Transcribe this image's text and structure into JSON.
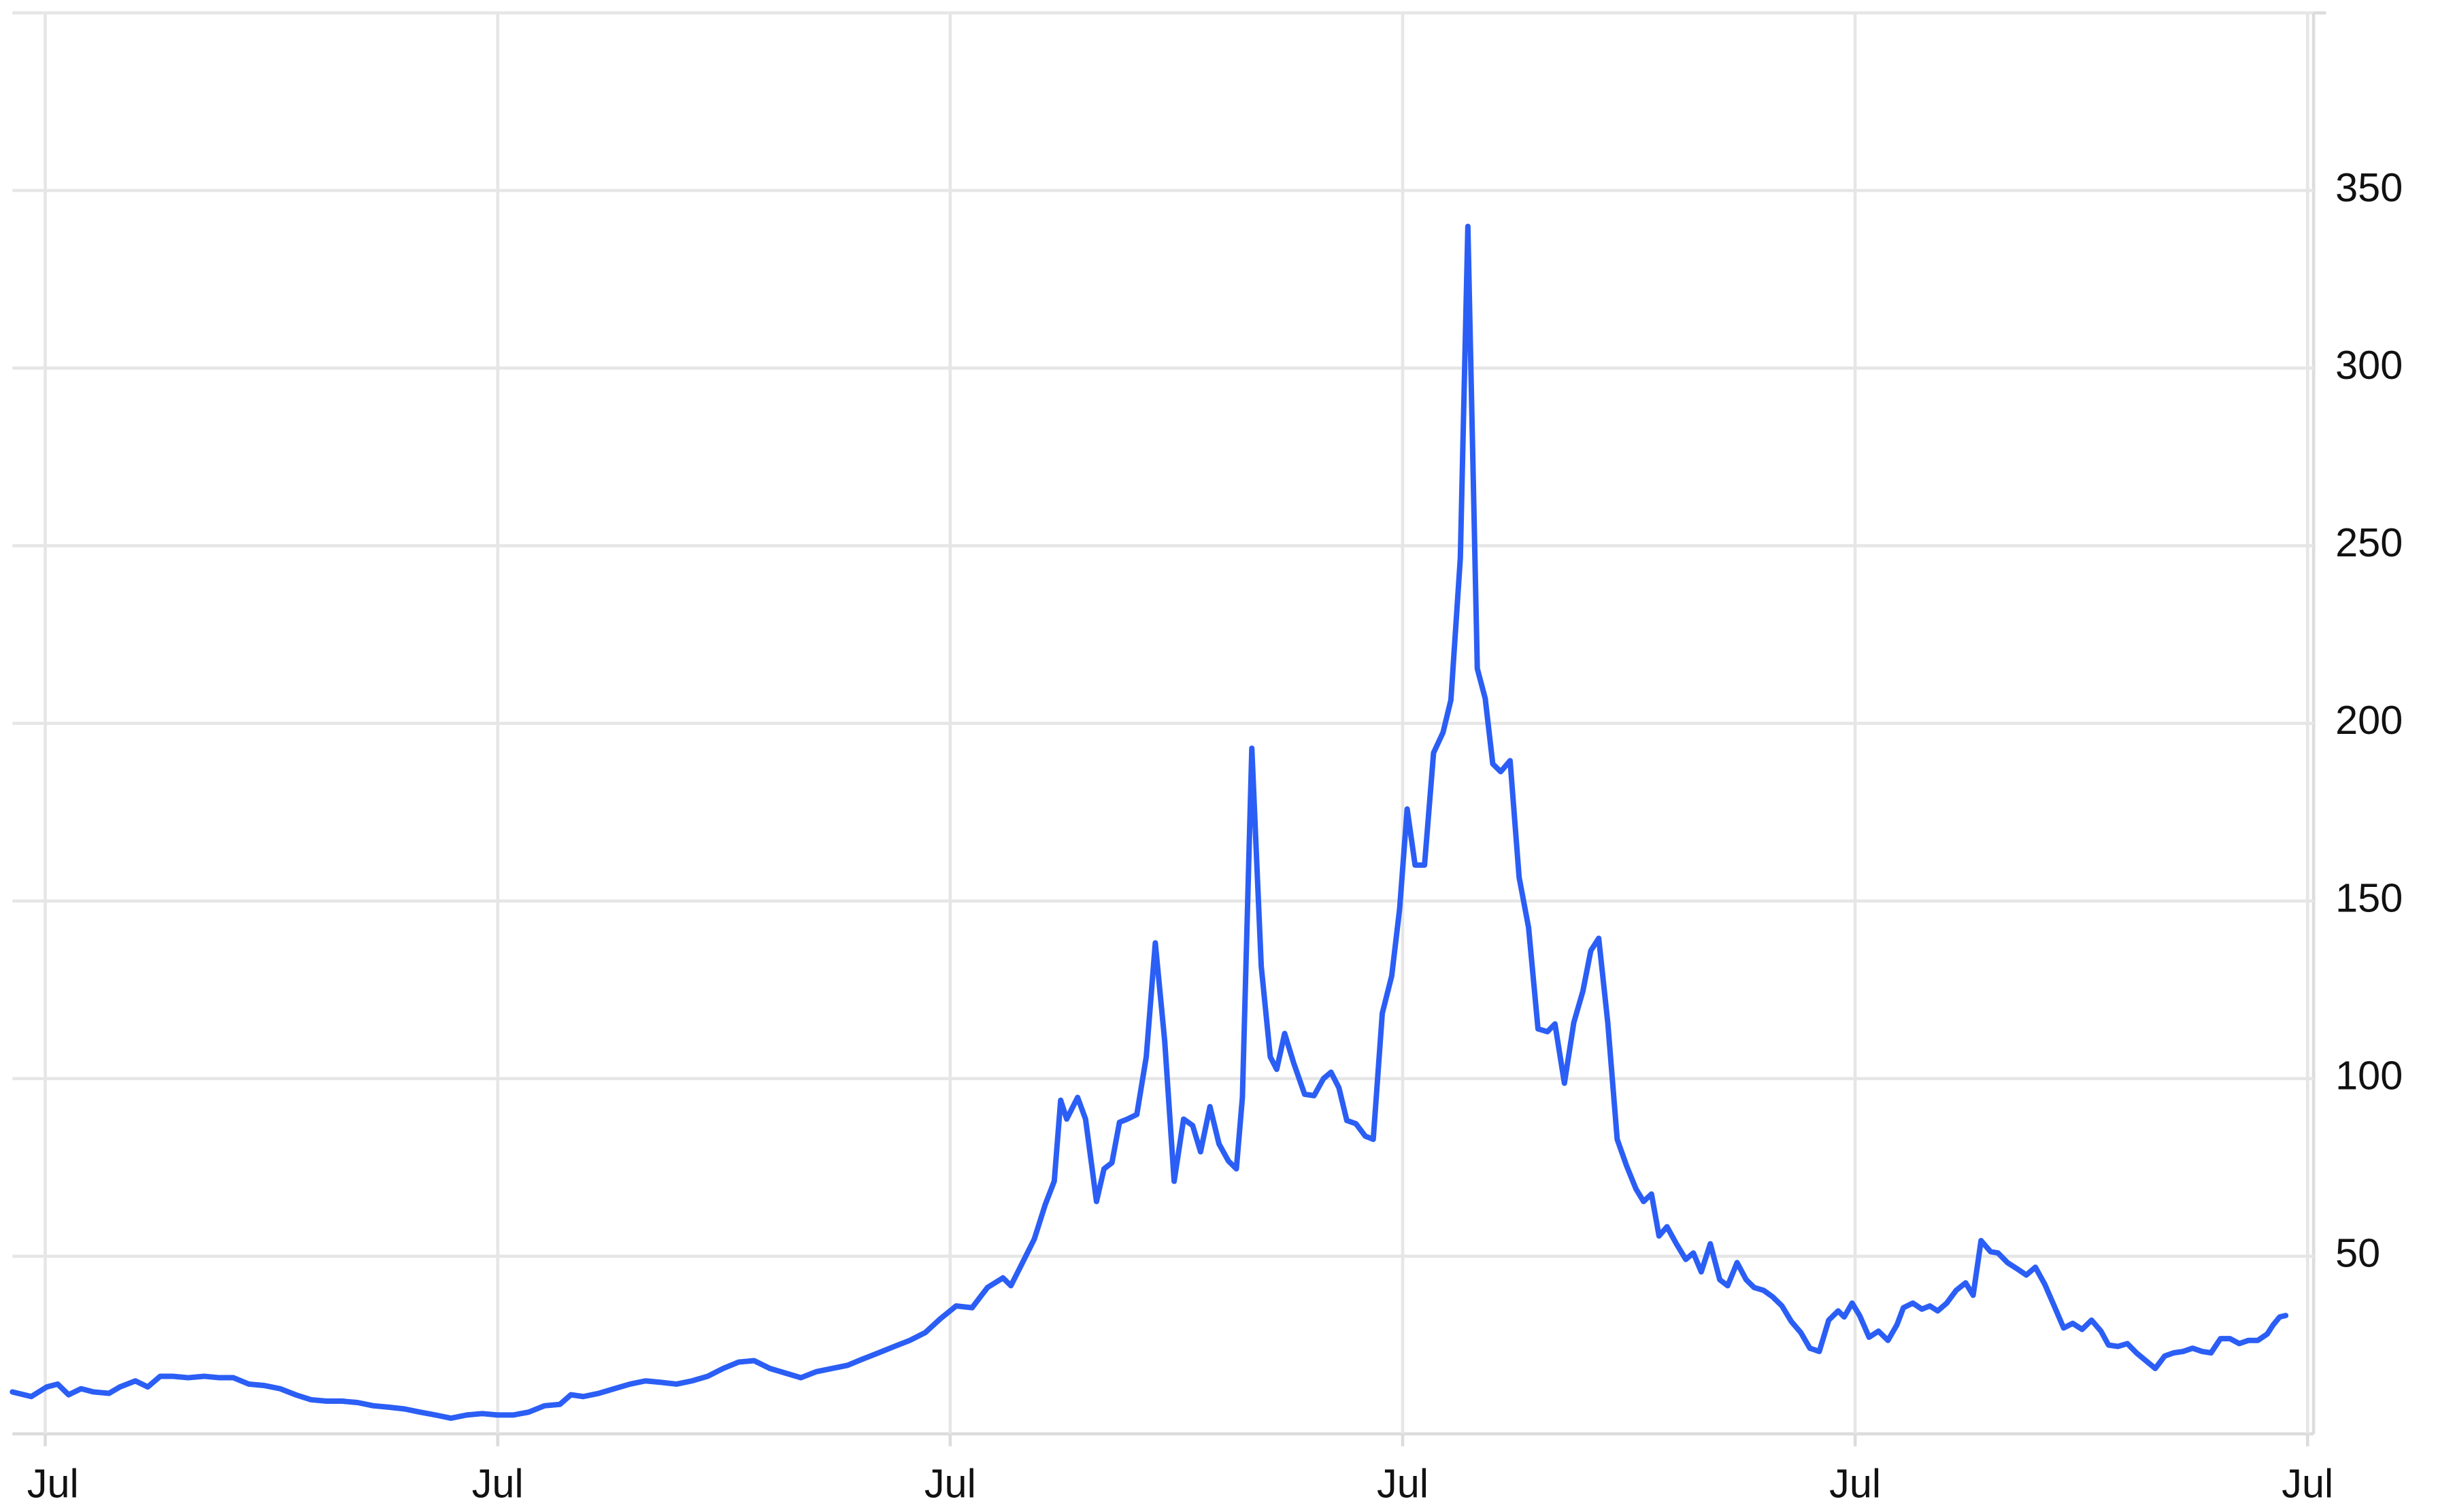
{
  "chart_data": {
    "type": "line",
    "color": "#2b5ef5",
    "grid": true,
    "xlim": [
      -0.87,
      60.16
    ],
    "xticks": [
      {
        "value": 0,
        "label": "Jul"
      },
      {
        "value": 12,
        "label": "Jul"
      },
      {
        "value": 24,
        "label": "Jul"
      },
      {
        "value": 36,
        "label": "Jul"
      },
      {
        "value": 48,
        "label": "Jul"
      },
      {
        "value": 60,
        "label": "Jul"
      }
    ],
    "ylim": [
      0,
      400
    ],
    "yticks": [
      50,
      100,
      150,
      200,
      250,
      300,
      350
    ],
    "x": [
      -0.87,
      -0.37,
      0.04,
      0.33,
      0.62,
      0.95,
      1.28,
      1.69,
      1.98,
      2.39,
      2.72,
      3.05,
      3.38,
      3.79,
      4.21,
      4.62,
      4.99,
      5.4,
      5.81,
      6.23,
      6.64,
      7.05,
      7.46,
      7.88,
      8.29,
      8.7,
      9.11,
      9.53,
      9.94,
      10.35,
      10.76,
      11.18,
      11.59,
      12,
      12.41,
      12.82,
      13.24,
      13.65,
      13.94,
      14.27,
      14.68,
      15.09,
      15.51,
      15.92,
      16.33,
      16.74,
      17.15,
      17.57,
      17.98,
      18.39,
      18.8,
      19.22,
      19.63,
      20.04,
      20.45,
      20.87,
      21.28,
      21.69,
      22.1,
      22.52,
      22.93,
      23.34,
      23.75,
      24.16,
      24.58,
      24.99,
      25.4,
      25.61,
      25.9,
      26.23,
      26.52,
      26.76,
      26.93,
      27.09,
      27.38,
      27.59,
      27.88,
      28.08,
      28.29,
      28.49,
      28.7,
      28.95,
      29.2,
      29.44,
      29.69,
      29.94,
      30.19,
      30.43,
      30.64,
      30.89,
      31.13,
      31.38,
      31.59,
      31.75,
      32,
      32.25,
      32.49,
      32.66,
      32.87,
      33.11,
      33.4,
      33.65,
      33.9,
      34.1,
      34.31,
      34.52,
      34.76,
      35.01,
      35.22,
      35.46,
      35.71,
      35.92,
      36.12,
      36.33,
      36.58,
      36.82,
      37.07,
      37.28,
      37.53,
      37.73,
      37.98,
      38.19,
      38.39,
      38.6,
      38.85,
      39.09,
      39.34,
      39.59,
      39.84,
      40.04,
      40.29,
      40.54,
      40.78,
      40.99,
      41.2,
      41.44,
      41.69,
      41.94,
      42.19,
      42.39,
      42.6,
      42.8,
      43.01,
      43.26,
      43.51,
      43.71,
      43.92,
      44.16,
      44.41,
      44.62,
      44.87,
      45.11,
      45.32,
      45.57,
      45.81,
      46.06,
      46.31,
      46.56,
      46.8,
      47.05,
      47.3,
      47.55,
      47.71,
      47.92,
      48.12,
      48.37,
      48.62,
      48.87,
      49.11,
      49.28,
      49.53,
      49.77,
      49.98,
      50.19,
      50.43,
      50.68,
      50.93,
      51.13,
      51.34,
      51.59,
      51.79,
      52.04,
      52.29,
      52.54,
      52.78,
      53.03,
      53.28,
      53.53,
      53.77,
      54.02,
      54.27,
      54.52,
      54.72,
      54.97,
      55.22,
      55.46,
      55.71,
      55.96,
      56.21,
      56.45,
      56.7,
      56.95,
      57.2,
      57.44,
      57.69,
      57.94,
      58.19,
      58.43,
      58.68,
      58.93,
      59.09,
      59.26,
      59.42
    ],
    "values": [
      11.8,
      10.5,
      13.2,
      14.0,
      11.0,
      12.7,
      11.8,
      11.4,
      13.2,
      14.9,
      13.2,
      16.2,
      16.2,
      15.8,
      16.2,
      15.8,
      15.8,
      14.0,
      13.6,
      12.7,
      11.0,
      9.6,
      9.2,
      9.2,
      8.8,
      7.9,
      7.5,
      7.0,
      6.1,
      5.3,
      4.4,
      5.3,
      5.7,
      5.3,
      5.3,
      6.1,
      7.9,
      8.3,
      11.0,
      10.5,
      11.4,
      12.7,
      14.0,
      14.9,
      14.5,
      14.0,
      14.9,
      16.2,
      18.4,
      20.2,
      20.6,
      18.4,
      17.1,
      15.8,
      17.5,
      18.4,
      19.3,
      21.1,
      22.8,
      24.6,
      26.3,
      28.5,
      32.5,
      36.0,
      35.5,
      41.2,
      43.9,
      41.7,
      47.8,
      54.8,
      64.5,
      71.1,
      93.9,
      88.6,
      94.7,
      88.6,
      65.4,
      74.6,
      76.3,
      87.7,
      88.6,
      89.9,
      106.1,
      138.2,
      110.5,
      71.1,
      88.6,
      86.8,
      79.4,
      92.1,
      81.6,
      76.8,
      74.6,
      94.7,
      193.0,
      131.6,
      106.1,
      102.6,
      112.7,
      104.4,
      95.6,
      95.2,
      100.0,
      101.8,
      97.4,
      88.2,
      87.3,
      83.8,
      82.9,
      118.4,
      128.9,
      147.8,
      175.9,
      160.1,
      160.1,
      191.7,
      197.4,
      206.6,
      246.5,
      339.9,
      215.4,
      207.0,
      188.6,
      186.4,
      189.5,
      156.6,
      142.5,
      114.0,
      113.2,
      115.4,
      98.7,
      115.8,
      124.6,
      136.0,
      139.5,
      115.8,
      82.9,
      75.4,
      68.9,
      65.4,
      67.5,
      55.7,
      58.3,
      53.5,
      49.1,
      50.9,
      45.6,
      53.5,
      43.4,
      41.7,
      48.2,
      43.4,
      41.2,
      40.4,
      38.6,
      36.0,
      31.6,
      28.5,
      24.1,
      23.2,
      32.0,
      34.6,
      32.9,
      36.8,
      33.3,
      27.2,
      28.9,
      26.3,
      30.7,
      35.5,
      36.8,
      35.1,
      36.0,
      34.6,
      36.8,
      40.4,
      42.5,
      39.0,
      54.4,
      51.3,
      50.9,
      48.2,
      46.5,
      44.7,
      46.9,
      42.1,
      36.0,
      29.8,
      31.1,
      29.4,
      32.0,
      28.9,
      25.0,
      24.6,
      25.4,
      22.8,
      20.6,
      18.4,
      21.9,
      22.8,
      23.2,
      24.1,
      23.2,
      22.8,
      26.8,
      26.8,
      25.4,
      26.3,
      26.3,
      28.1,
      30.7,
      32.9,
      33.3
    ]
  }
}
